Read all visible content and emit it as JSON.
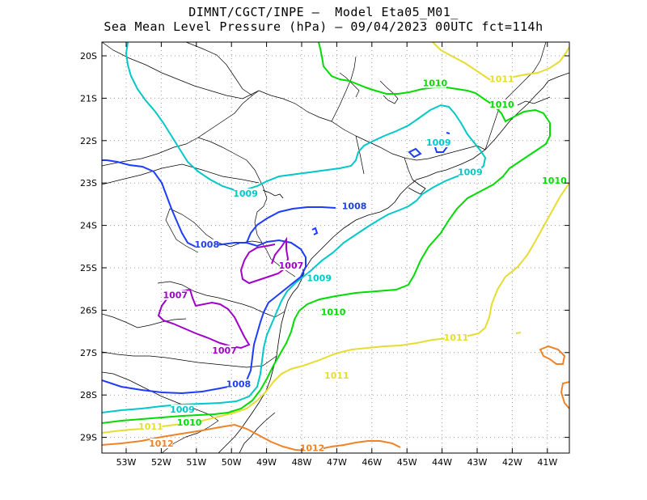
{
  "header": {
    "title_line1": "DIMNT/CGCT/INPE –  Model Eta05_M01_",
    "title_line2": "Sea Mean Level Pressure (hPa) – 09/04/2023 00UTC fct=114h"
  },
  "axes": {
    "lat_ticks": [
      "20S",
      "21S",
      "22S",
      "23S",
      "24S",
      "25S",
      "26S",
      "27S",
      "28S",
      "29S"
    ],
    "lon_ticks": [
      "53W",
      "52W",
      "51W",
      "50W",
      "49W",
      "48W",
      "47W",
      "46W",
      "45W",
      "44W",
      "43W",
      "42W",
      "41W"
    ],
    "lon_range": [
      -53.6,
      -40.5
    ],
    "lat_range": [
      -29.4,
      -19.7
    ],
    "grid": true
  },
  "colors": {
    "c1007": "#a000c8",
    "c1008": "#1e3cff",
    "c1009": "#00c8c8",
    "c1010": "#00dc00",
    "c1011": "#e6dc32",
    "c1012": "#f08228",
    "coast": "#000000",
    "grid": "#a0a0a0"
  },
  "contour_labels": [
    {
      "text": "1010",
      "color": "c1010",
      "lon": -44.2,
      "lat": -20.7
    },
    {
      "text": "1011",
      "color": "c1011",
      "lon": -42.3,
      "lat": -20.6
    },
    {
      "text": "1010",
      "color": "c1010",
      "lon": -42.3,
      "lat": -21.2
    },
    {
      "text": "1009",
      "color": "c1009",
      "lon": -44.1,
      "lat": -22.1
    },
    {
      "text": "1009",
      "color": "c1009",
      "lon": -43.2,
      "lat": -22.8
    },
    {
      "text": "1010",
      "color": "c1010",
      "lon": -40.8,
      "lat": -23.0
    },
    {
      "text": "1009",
      "color": "c1009",
      "lon": -49.6,
      "lat": -23.3
    },
    {
      "text": "1008",
      "color": "c1008",
      "lon": -46.5,
      "lat": -23.6
    },
    {
      "text": "1008",
      "color": "c1008",
      "lon": -50.7,
      "lat": -24.5
    },
    {
      "text": "1007",
      "color": "c1007",
      "lon": -48.3,
      "lat": -25.0
    },
    {
      "text": "1009",
      "color": "c1009",
      "lon": -47.5,
      "lat": -25.3
    },
    {
      "text": "1007",
      "color": "c1007",
      "lon": -51.6,
      "lat": -25.7
    },
    {
      "text": "1010",
      "color": "c1010",
      "lon": -47.1,
      "lat": -26.1
    },
    {
      "text": "1011",
      "color": "c1011",
      "lon": -43.6,
      "lat": -26.7
    },
    {
      "text": "1007",
      "color": "c1007",
      "lon": -50.2,
      "lat": -27.0
    },
    {
      "text": "1011",
      "color": "c1011",
      "lon": -47.0,
      "lat": -27.6
    },
    {
      "text": "1008",
      "color": "c1008",
      "lon": -49.8,
      "lat": -27.8
    },
    {
      "text": "1009",
      "color": "c1009",
      "lon": -51.4,
      "lat": -28.4
    },
    {
      "text": "1010",
      "color": "c1010",
      "lon": -51.2,
      "lat": -28.7
    },
    {
      "text": "1011",
      "color": "c1011",
      "lon": -52.3,
      "lat": -28.8
    },
    {
      "text": "1012",
      "color": "c1012",
      "lon": -52.0,
      "lat": -29.2
    },
    {
      "text": "1012",
      "color": "c1012",
      "lon": -47.7,
      "lat": -29.3
    }
  ]
}
